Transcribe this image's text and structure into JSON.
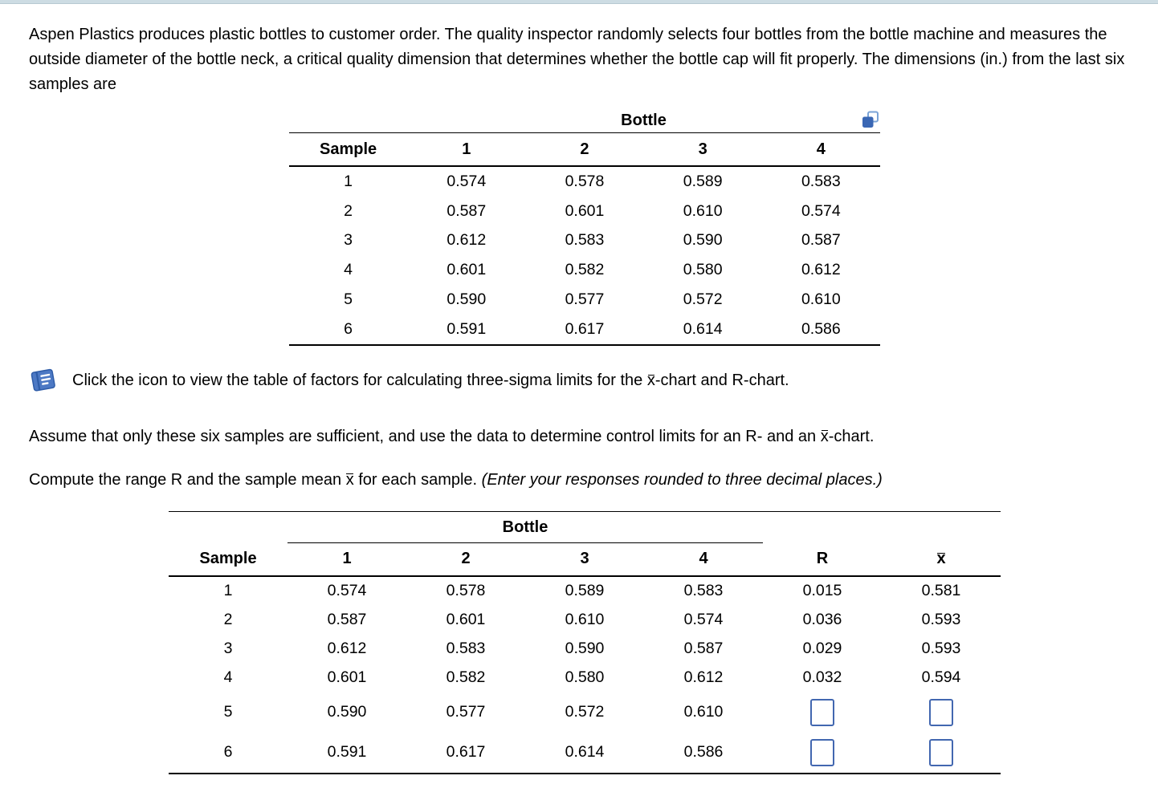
{
  "colors": {
    "top_stripe": "#cddce3",
    "icon_blue": "#3a67b4",
    "input_border": "#4267b0",
    "table_rule": "#000000"
  },
  "icons": {
    "copy_table": "copy-icon",
    "factors_book": "book-icon"
  },
  "problem": {
    "intro": "Aspen Plastics produces plastic bottles to customer order. The quality inspector randomly selects four bottles from the bottle machine and measures the outside diameter of the bottle neck, a critical quality dimension that determines whether the bottle cap will fit properly. The dimensions (in.) from the last six samples are"
  },
  "factors_line": {
    "pre": "Click the icon to view the table of factors for calculating three-sigma limits for the ",
    "xbar": "x",
    "post": "-chart and R-chart."
  },
  "assume_line": {
    "pre": "Assume that only these six samples are sufficient, and use the data to determine control limits for an R- and an ",
    "xbar": "x",
    "post": "-chart."
  },
  "compute_line": {
    "pre": "Compute the range R and the sample mean ",
    "xbar": "x",
    "mid": " for each sample. ",
    "note": "(Enter your responses rounded to three decimal places.)"
  },
  "data_table": {
    "group_header": "Bottle",
    "columns": [
      "Sample",
      "1",
      "2",
      "3",
      "4"
    ],
    "rows": [
      [
        "1",
        "0.574",
        "0.578",
        "0.589",
        "0.583"
      ],
      [
        "2",
        "0.587",
        "0.601",
        "0.610",
        "0.574"
      ],
      [
        "3",
        "0.612",
        "0.583",
        "0.590",
        "0.587"
      ],
      [
        "4",
        "0.601",
        "0.582",
        "0.580",
        "0.612"
      ],
      [
        "5",
        "0.590",
        "0.577",
        "0.572",
        "0.610"
      ],
      [
        "6",
        "0.591",
        "0.617",
        "0.614",
        "0.586"
      ]
    ]
  },
  "answer_table": {
    "group_header": "Bottle",
    "columns": [
      "Sample",
      "1",
      "2",
      "3",
      "4",
      "R"
    ],
    "xbar_header": "x",
    "rows": [
      [
        "1",
        "0.574",
        "0.578",
        "0.589",
        "0.583",
        "0.015",
        "0.581"
      ],
      [
        "2",
        "0.587",
        "0.601",
        "0.610",
        "0.574",
        "0.036",
        "0.593"
      ],
      [
        "3",
        "0.612",
        "0.583",
        "0.590",
        "0.587",
        "0.029",
        "0.593"
      ],
      [
        "4",
        "0.601",
        "0.582",
        "0.580",
        "0.612",
        "0.032",
        "0.594"
      ],
      [
        "5",
        "0.590",
        "0.577",
        "0.572",
        "0.610",
        null,
        null
      ],
      [
        "6",
        "0.591",
        "0.617",
        "0.614",
        "0.586",
        null,
        null
      ]
    ]
  }
}
